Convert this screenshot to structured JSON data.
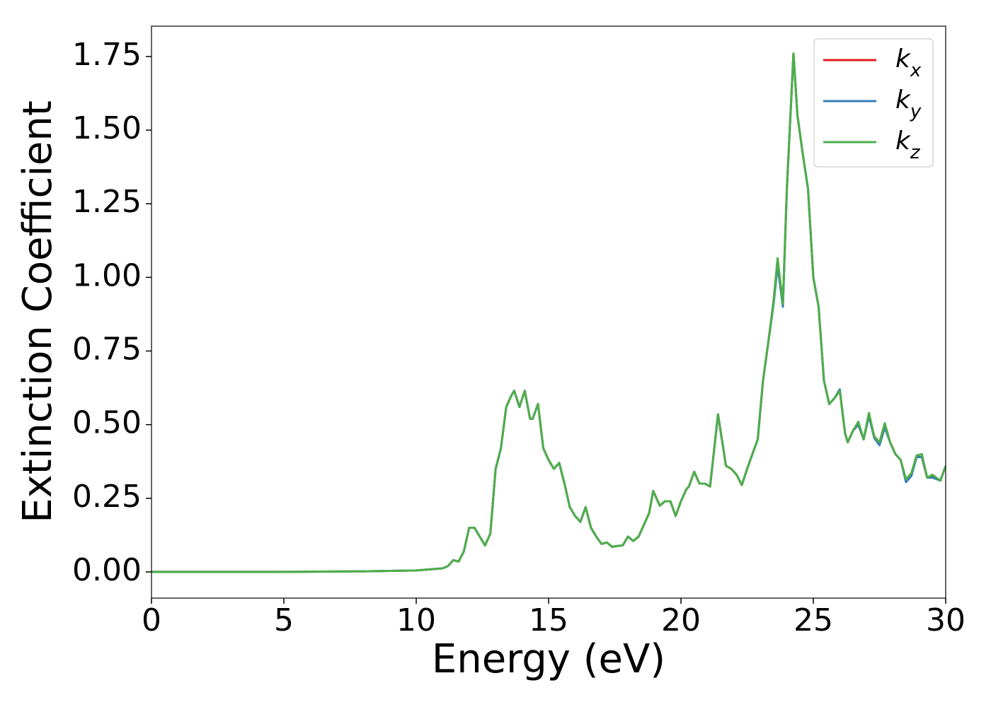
{
  "chart_data": {
    "type": "line",
    "xlabel": "Energy (eV)",
    "ylabel": "Extinction Coefficient",
    "x": [
      0,
      5,
      8,
      10,
      11,
      11.2,
      11.4,
      11.6,
      11.8,
      12.0,
      12.2,
      12.4,
      12.6,
      12.8,
      13.0,
      13.2,
      13.4,
      13.6,
      13.7,
      13.9,
      14.1,
      14.3,
      14.4,
      14.6,
      14.8,
      15.0,
      15.2,
      15.4,
      15.6,
      15.8,
      16.0,
      16.2,
      16.4,
      16.6,
      16.8,
      17.0,
      17.2,
      17.4,
      17.6,
      17.8,
      18.0,
      18.2,
      18.4,
      18.6,
      18.8,
      18.95,
      19.2,
      19.4,
      19.6,
      19.8,
      20.0,
      20.2,
      20.3,
      20.5,
      20.7,
      20.9,
      21.1,
      21.4,
      21.7,
      21.9,
      22.1,
      22.3,
      22.5,
      22.7,
      22.9,
      23.1,
      23.3,
      23.5,
      23.65,
      23.85,
      24.0,
      24.25,
      24.4,
      24.6,
      24.8,
      25.0,
      25.2,
      25.4,
      25.6,
      25.8,
      26.0,
      26.2,
      26.3,
      26.5,
      26.7,
      26.9,
      27.1,
      27.3,
      27.5,
      27.7,
      27.9,
      28.1,
      28.3,
      28.5,
      28.7,
      28.9,
      29.1,
      29.3,
      29.5,
      29.8,
      30.0
    ],
    "series": [
      {
        "name": "kx",
        "color": "#e41a1c",
        "values": [
          0,
          0,
          0.002,
          0.005,
          0.012,
          0.02,
          0.04,
          0.035,
          0.07,
          0.15,
          0.15,
          0.12,
          0.09,
          0.13,
          0.35,
          0.42,
          0.56,
          0.6,
          0.615,
          0.56,
          0.615,
          0.52,
          0.52,
          0.57,
          0.42,
          0.38,
          0.35,
          0.37,
          0.3,
          0.22,
          0.19,
          0.17,
          0.22,
          0.15,
          0.12,
          0.095,
          0.1,
          0.085,
          0.088,
          0.09,
          0.12,
          0.105,
          0.12,
          0.16,
          0.2,
          0.275,
          0.225,
          0.24,
          0.24,
          0.19,
          0.24,
          0.28,
          0.29,
          0.34,
          0.3,
          0.3,
          0.29,
          0.535,
          0.36,
          0.35,
          0.33,
          0.295,
          0.35,
          0.4,
          0.45,
          0.65,
          0.78,
          0.92,
          1.06,
          0.91,
          1.3,
          1.76,
          1.55,
          1.42,
          1.3,
          1.0,
          0.9,
          0.65,
          0.57,
          0.59,
          0.615,
          0.47,
          0.44,
          0.48,
          0.5,
          0.45,
          0.53,
          0.46,
          0.44,
          0.5,
          0.44,
          0.4,
          0.38,
          0.31,
          0.33,
          0.39,
          0.39,
          0.32,
          0.325,
          0.31,
          0.36
        ]
      },
      {
        "name": "ky",
        "color": "#377eb8",
        "values": [
          0,
          0,
          0.002,
          0.005,
          0.012,
          0.02,
          0.04,
          0.035,
          0.07,
          0.15,
          0.15,
          0.12,
          0.09,
          0.13,
          0.35,
          0.42,
          0.56,
          0.6,
          0.615,
          0.56,
          0.615,
          0.52,
          0.52,
          0.57,
          0.42,
          0.38,
          0.35,
          0.37,
          0.3,
          0.22,
          0.19,
          0.17,
          0.22,
          0.15,
          0.12,
          0.095,
          0.1,
          0.085,
          0.088,
          0.09,
          0.12,
          0.105,
          0.12,
          0.16,
          0.2,
          0.275,
          0.225,
          0.24,
          0.24,
          0.19,
          0.24,
          0.28,
          0.29,
          0.34,
          0.3,
          0.3,
          0.29,
          0.535,
          0.36,
          0.35,
          0.33,
          0.295,
          0.35,
          0.4,
          0.45,
          0.65,
          0.78,
          0.91,
          1.04,
          0.9,
          1.3,
          1.76,
          1.55,
          1.42,
          1.3,
          1.0,
          0.9,
          0.65,
          0.57,
          0.59,
          0.62,
          0.47,
          0.44,
          0.48,
          0.5,
          0.45,
          0.53,
          0.455,
          0.43,
          0.49,
          0.44,
          0.4,
          0.38,
          0.305,
          0.325,
          0.39,
          0.39,
          0.32,
          0.32,
          0.31,
          0.36
        ]
      },
      {
        "name": "kz",
        "color": "#4daf4a",
        "values": [
          0,
          0,
          0.002,
          0.005,
          0.012,
          0.02,
          0.04,
          0.035,
          0.07,
          0.15,
          0.15,
          0.12,
          0.09,
          0.13,
          0.35,
          0.42,
          0.56,
          0.6,
          0.615,
          0.56,
          0.615,
          0.52,
          0.52,
          0.57,
          0.42,
          0.38,
          0.35,
          0.37,
          0.3,
          0.22,
          0.19,
          0.17,
          0.22,
          0.15,
          0.12,
          0.095,
          0.1,
          0.085,
          0.088,
          0.09,
          0.12,
          0.105,
          0.12,
          0.16,
          0.2,
          0.275,
          0.225,
          0.24,
          0.24,
          0.19,
          0.24,
          0.28,
          0.29,
          0.34,
          0.3,
          0.3,
          0.29,
          0.535,
          0.36,
          0.35,
          0.33,
          0.295,
          0.35,
          0.4,
          0.45,
          0.65,
          0.78,
          0.92,
          1.065,
          0.91,
          1.3,
          1.76,
          1.55,
          1.42,
          1.3,
          1.0,
          0.9,
          0.65,
          0.57,
          0.59,
          0.615,
          0.47,
          0.44,
          0.48,
          0.51,
          0.45,
          0.54,
          0.46,
          0.44,
          0.505,
          0.44,
          0.4,
          0.38,
          0.315,
          0.335,
          0.395,
          0.4,
          0.32,
          0.33,
          0.31,
          0.36
        ]
      }
    ],
    "xlim": [
      0,
      30
    ],
    "xticks": [
      0,
      5,
      10,
      15,
      20,
      25,
      30
    ],
    "ylim": [
      -0.089,
      1.853
    ],
    "yticks": [
      {
        "value": 0,
        "label": "0.00"
      },
      {
        "value": 0.25,
        "label": "0.25"
      },
      {
        "value": 0.5,
        "label": "0.50"
      },
      {
        "value": 0.75,
        "label": "0.75"
      },
      {
        "value": 1.0,
        "label": "1.00"
      },
      {
        "value": 1.25,
        "label": "1.25"
      },
      {
        "value": 1.5,
        "label": "1.50"
      },
      {
        "value": 1.75,
        "label": "1.75"
      }
    ],
    "grid": false,
    "legend": "upper right"
  }
}
